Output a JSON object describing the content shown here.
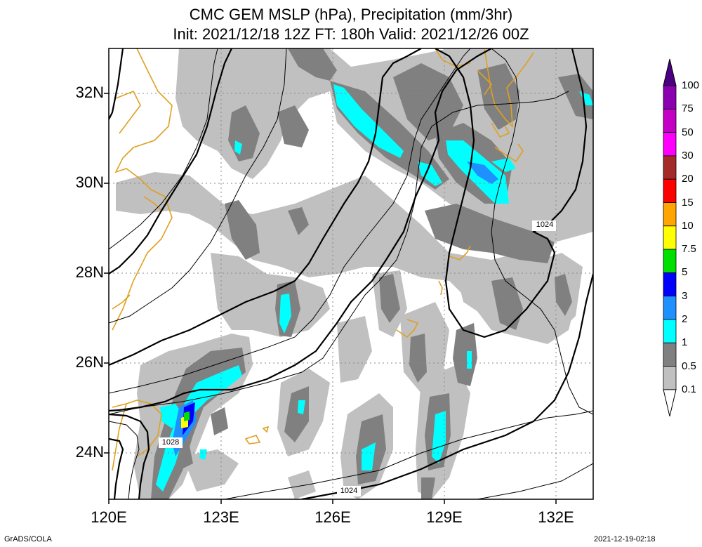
{
  "title": {
    "line1": "CMC GEM MSLP (hPa), Precipitation (mm/3hr)",
    "line2": "Init: 2021/12/18 12Z  FT: 180h  Valid: 2021/12/26 00Z"
  },
  "lat_labels": [
    "32N",
    "30N",
    "28N",
    "26N",
    "24N"
  ],
  "lon_labels": [
    "120E",
    "123E",
    "126E",
    "129E",
    "132E"
  ],
  "isobar_labels": [
    "1024",
    "1028",
    "1024"
  ],
  "colorbar": {
    "labels": [
      "100",
      "75",
      "50",
      "30",
      "20",
      "15",
      "10",
      "7.5",
      "5",
      "3",
      "2",
      "1",
      "0.5",
      "0.1"
    ],
    "colors": [
      "#4b0082",
      "#8a00b0",
      "#c400c4",
      "#ff00ff",
      "#a52a2a",
      "#ff0000",
      "#ffa500",
      "#ffff00",
      "#00e000",
      "#0000ff",
      "#1e90ff",
      "#00ffff",
      "#808080",
      "#c0c0c0",
      "#ffffff"
    ]
  },
  "colors": {
    "precip_light": "#c0c0c0",
    "precip_moderate": "#808080",
    "precip_1mm": "#00ffff",
    "precip_2mm": "#1e90ff",
    "coastline": "#e0a020",
    "isobar": "#000000"
  },
  "footer": {
    "left": "GrADS/COLA",
    "right": "2021-12-19-02:18"
  }
}
